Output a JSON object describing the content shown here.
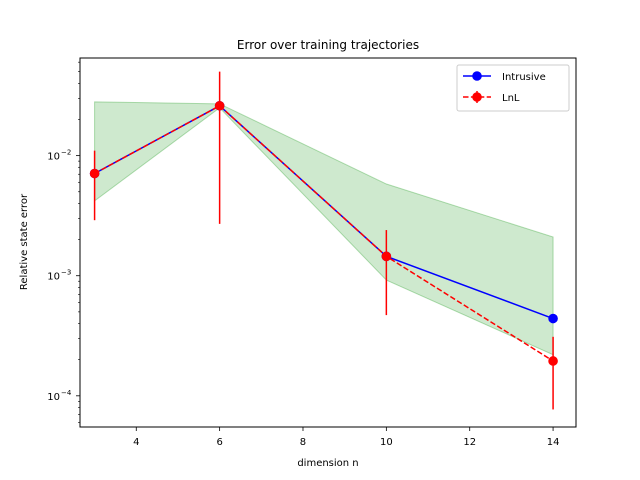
{
  "chart_data": {
    "type": "line",
    "title": "Error over training trajectories",
    "xlabel": "dimension n",
    "ylabel": "Relative state error",
    "y_scale": "log",
    "xlim": [
      2.65,
      14.55
    ],
    "ylim": [
      5.5e-05,
      0.065
    ],
    "x_ticks": [
      4,
      6,
      8,
      10,
      12,
      14
    ],
    "y_ticks": [
      {
        "value": 0.0001,
        "base": "10",
        "exp": "−4"
      },
      {
        "value": 0.001,
        "base": "10",
        "exp": "−3"
      },
      {
        "value": 0.01,
        "base": "10",
        "exp": "−2"
      }
    ],
    "x": [
      3,
      6,
      10,
      14
    ],
    "series": [
      {
        "name": "Intrusive",
        "color": "#0000ff",
        "style": "solid",
        "marker": "circle",
        "values": [
          0.0071,
          0.026,
          0.00145,
          0.00044
        ]
      },
      {
        "name": "LnL",
        "color": "#ff0000",
        "style": "dashed",
        "marker": "circle",
        "errorbars": true,
        "values": [
          0.0071,
          0.026,
          0.00145,
          0.000195
        ],
        "err_low": [
          0.0029,
          0.0027,
          0.00047,
          7.7e-05
        ],
        "err_high": [
          0.011,
          0.05,
          0.0024,
          0.00031
        ]
      }
    ],
    "band": {
      "color": "#2ca02c",
      "x": [
        3,
        6,
        10,
        14
      ],
      "upper": [
        0.028,
        0.027,
        0.0058,
        0.0021
      ],
      "lower": [
        0.0042,
        0.025,
        0.00092,
        0.00022
      ]
    },
    "legend": {
      "position": "top-right",
      "entries": [
        "Intrusive",
        "LnL"
      ]
    },
    "grid": false
  }
}
